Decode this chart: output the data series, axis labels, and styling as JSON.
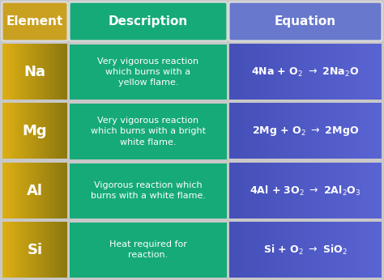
{
  "headers": [
    "Element",
    "Description",
    "Equation"
  ],
  "header_colors": [
    "#C9A020",
    "#16AA78",
    "#6878CC"
  ],
  "rows": [
    {
      "element": "Na",
      "description": "Very vigorous reaction\nwhich burns with a\nyellow flame.",
      "equation_tex": "4Na + O$_2$ $\\rightarrow$ 2Na$_2$O"
    },
    {
      "element": "Mg",
      "description": "Very vigorous reaction\nwhich burns with a bright\nwhite flame.",
      "equation_tex": "2Mg + O$_2$ $\\rightarrow$ 2MgO"
    },
    {
      "element": "Al",
      "description": "Vigorous reaction which\nburns with a white flame.",
      "equation_tex": "4Al + 3O$_2$ $\\rightarrow$ 2Al$_2$O$_3$"
    },
    {
      "element": "Si",
      "description": "Heat required for\nreaction.",
      "equation_tex": "Si + O$_2$ $\\rightarrow$ SiO$_2$"
    }
  ],
  "elem_col_colors": [
    "#C8A020",
    "#A07818"
  ],
  "desc_col_color": "#16AA78",
  "eq_col_colors": [
    "#4858B8",
    "#6070D0"
  ],
  "background_color": "#C8C8C8",
  "figwidth": 4.74,
  "figheight": 3.46,
  "dpi": 100
}
